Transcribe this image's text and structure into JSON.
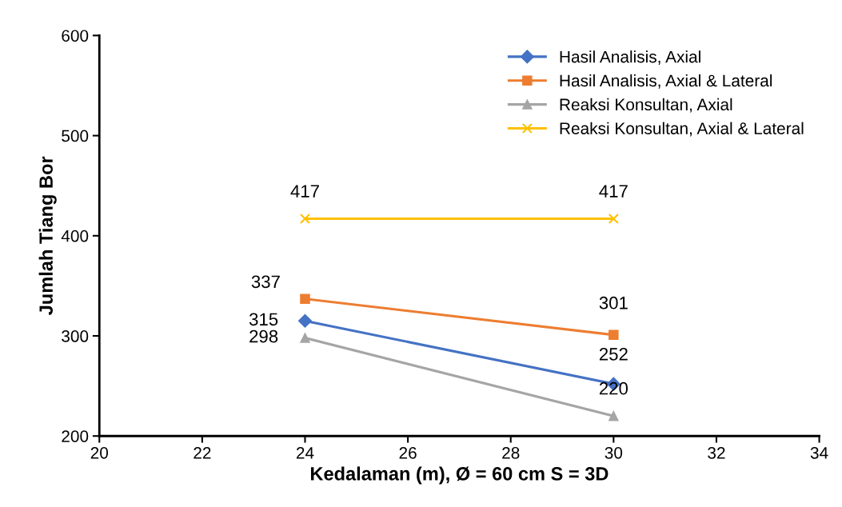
{
  "chart_data": {
    "type": "line",
    "xlabel": "Kedalaman (m), Ø = 60 cm S = 3D",
    "ylabel": "Jumlah Tiang Bor",
    "x": [
      24,
      30
    ],
    "series": [
      {
        "name": "Hasil Analisis, Axial",
        "color": "#4472c4",
        "marker": "diamond",
        "values": [
          315,
          252
        ]
      },
      {
        "name": "Hasil Analisis, Axial & Lateral",
        "color": "#ed7d31",
        "marker": "square",
        "values": [
          337,
          301
        ]
      },
      {
        "name": "Reaksi Konsultan, Axial",
        "color": "#a5a5a5",
        "marker": "triangle",
        "values": [
          298,
          220
        ]
      },
      {
        "name": "Reaksi Konsultan, Axial & Lateral",
        "color": "#ffc000",
        "marker": "cross",
        "values": [
          417,
          417
        ]
      }
    ],
    "xlim": [
      20,
      34
    ],
    "xticks": [
      20,
      22,
      24,
      26,
      28,
      30,
      32,
      34
    ],
    "ylim": [
      200,
      600
    ],
    "yticks": [
      200,
      300,
      400,
      500,
      600
    ],
    "grid": false,
    "legend": "top right",
    "data_labels": true
  }
}
